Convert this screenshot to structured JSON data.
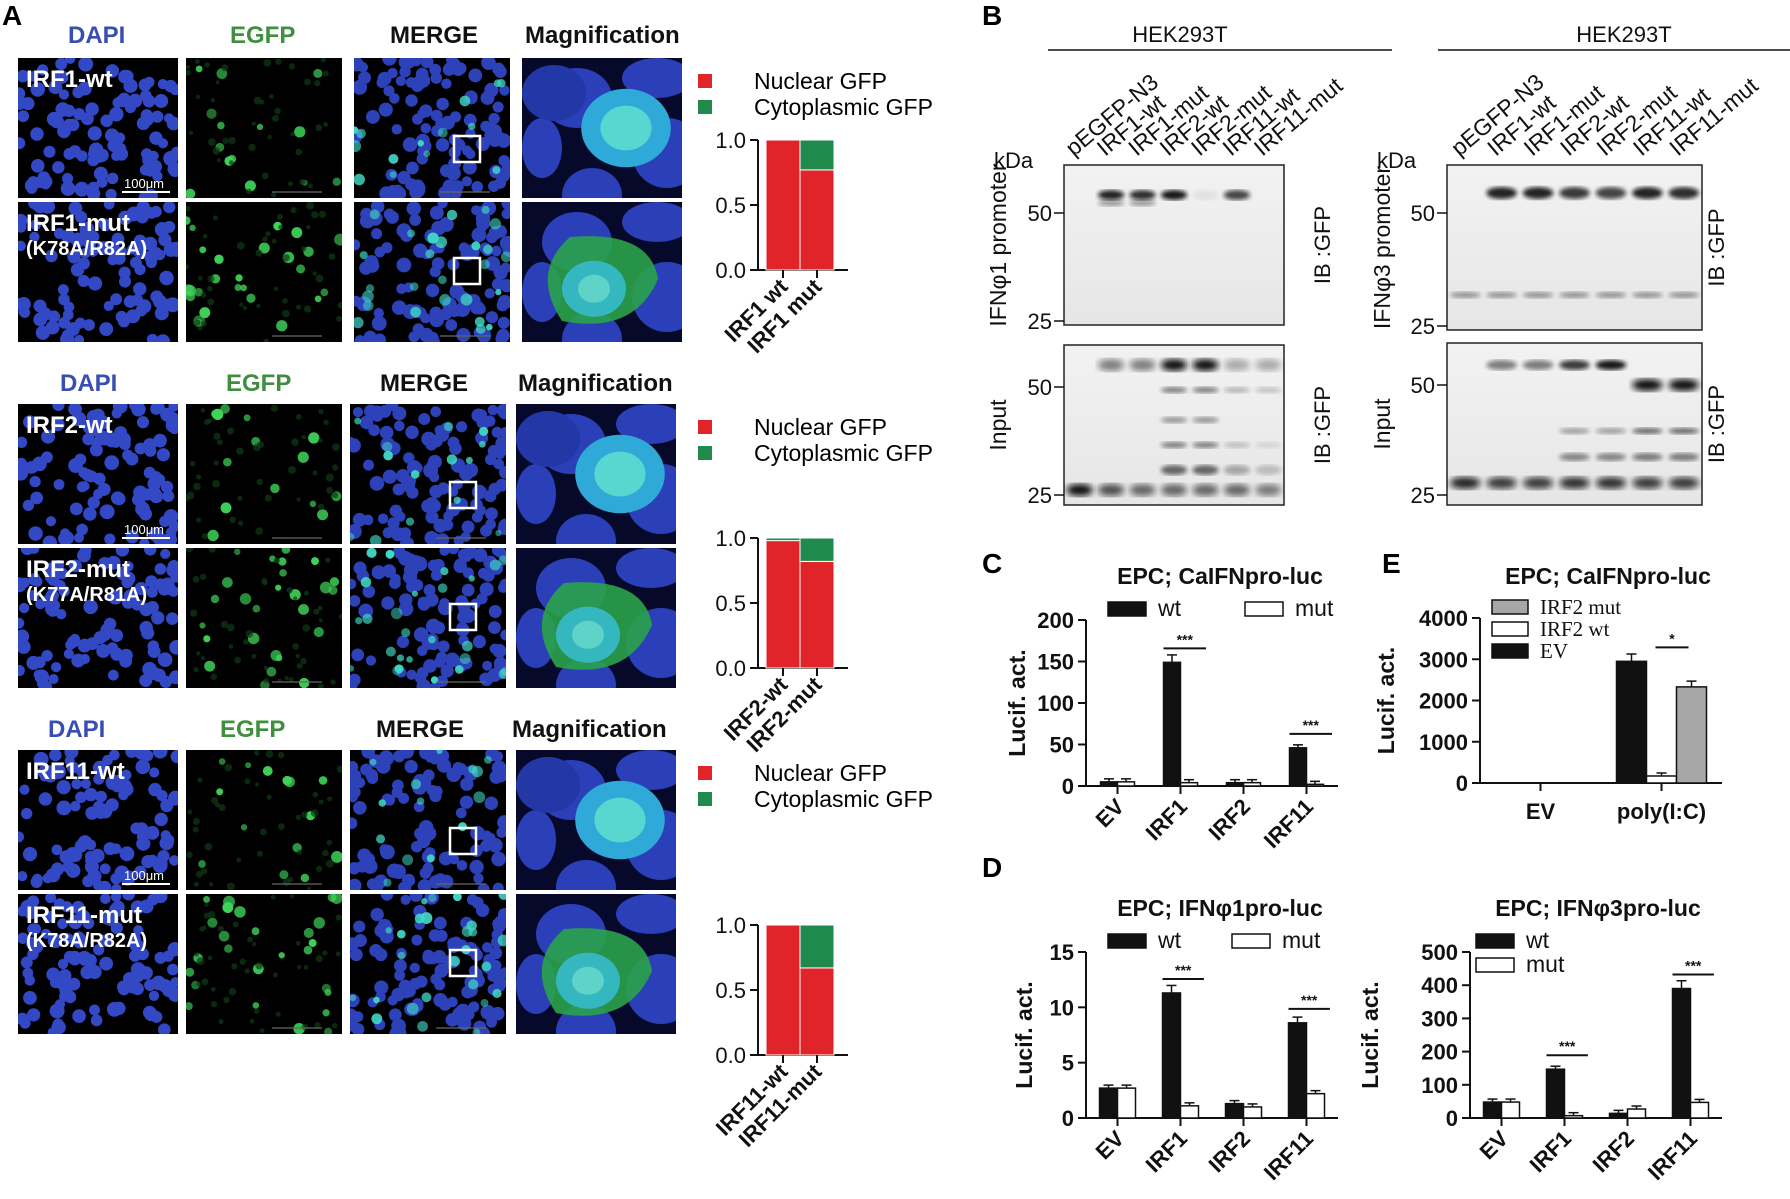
{
  "panel_letters": {
    "A": "A",
    "B": "B",
    "C": "C",
    "D": "D",
    "E": "E"
  },
  "panelA": {
    "headers": {
      "dapi": "DAPI",
      "egfp": "EGFP",
      "merge": "MERGE",
      "mag": "Magnification"
    },
    "scale_bar": "100μm",
    "legend": {
      "nuclear": "Nuclear GFP",
      "cyto": "Cytoplasmic GFP"
    },
    "colors": {
      "dapi": "#3a4db3",
      "egfp": "#3f8f3f",
      "nuclear": "#e0242a",
      "cyto": "#1f8a4c"
    },
    "groups": [
      {
        "row1": "IRF1-wt",
        "row2a": "IRF1-mut",
        "row2b": "(K78A/R82A)",
        "xlabels": [
          "IRF1 wt",
          "IRF1 mut"
        ]
      },
      {
        "row1": "IRF2-wt",
        "row2a": "IRF2-mut",
        "row2b": "(K77A/R81A)",
        "xlabels": [
          "IRF2-wt",
          "IRF2-mut"
        ]
      },
      {
        "row1": "IRF11-wt",
        "row2a": "IRF11-mut",
        "row2b": "(K78A/R82A)",
        "xlabels": [
          "IRF11-wt",
          "IRF11-mut"
        ]
      }
    ],
    "yticks": [
      "1.0",
      "0.5",
      "0.0"
    ]
  },
  "panelB": {
    "cell": "HEK293T",
    "lanes": [
      "pEGFP-N3",
      "IRF1-wt",
      "IRF1-mut",
      "IRF2-wt",
      "IRF2-mut",
      "IRF11-wt",
      "IRF11-mut"
    ],
    "kda": "kDa",
    "left": {
      "top_side": "IFNφ1 promoter",
      "bottom_side": "Input",
      "marks_top": [
        "50",
        "25"
      ],
      "marks_bot": [
        "50",
        "25"
      ]
    },
    "right": {
      "top_side": "IFNφ3 promoter",
      "bottom_side": "Input",
      "marks_top": [
        "50",
        "25"
      ],
      "marks_bot": [
        "50",
        "25"
      ]
    },
    "ib": "IB :GFP"
  },
  "chart_data": [
    {
      "id": "A-IRF1",
      "type": "bar",
      "stacked": true,
      "categories": [
        "IRF1 wt",
        "IRF1 mut"
      ],
      "series": [
        {
          "name": "Nuclear GFP",
          "values": [
            1.0,
            0.77
          ]
        },
        {
          "name": "Cytoplasmic GFP",
          "values": [
            0.0,
            0.23
          ]
        }
      ],
      "ylim": [
        0,
        1.0
      ]
    },
    {
      "id": "A-IRF2",
      "type": "bar",
      "stacked": true,
      "categories": [
        "IRF2-wt",
        "IRF2-mut"
      ],
      "series": [
        {
          "name": "Nuclear GFP",
          "values": [
            0.98,
            0.82
          ]
        },
        {
          "name": "Cytoplasmic GFP",
          "values": [
            0.02,
            0.18
          ]
        }
      ],
      "ylim": [
        0,
        1.0
      ]
    },
    {
      "id": "A-IRF11",
      "type": "bar",
      "stacked": true,
      "categories": [
        "IRF11-wt",
        "IRF11-mut"
      ],
      "series": [
        {
          "name": "Nuclear GFP",
          "values": [
            1.0,
            0.67
          ]
        },
        {
          "name": "Cytoplasmic GFP",
          "values": [
            0.0,
            0.33
          ]
        }
      ],
      "ylim": [
        0,
        1.0
      ]
    },
    {
      "id": "C",
      "type": "bar",
      "title": "EPC; CaIFNpro-luc",
      "ylabel": "Lucif. act.",
      "categories": [
        "EV",
        "IRF1",
        "IRF2",
        "IRF11"
      ],
      "series": [
        {
          "name": "wt",
          "values": [
            5,
            149,
            4,
            46
          ]
        },
        {
          "name": "mut",
          "values": [
            5,
            4,
            4,
            2
          ]
        }
      ],
      "ylim": [
        0,
        200
      ],
      "yticks": [
        "0",
        "50",
        "100",
        "150",
        "200"
      ],
      "sig": [
        {
          "cat": "IRF1",
          "text": "***"
        },
        {
          "cat": "IRF11",
          "text": "***"
        }
      ]
    },
    {
      "id": "E",
      "type": "bar",
      "title": "EPC; CaIFNpro-luc",
      "ylabel": "Lucif. act.",
      "categories": [
        "EV",
        "poly(I:C)"
      ],
      "series": [
        {
          "name": "EV",
          "values": [
            0,
            2950
          ]
        },
        {
          "name": "IRF2 wt",
          "values": [
            0,
            170
          ]
        },
        {
          "name": "IRF2 mut",
          "values": [
            0,
            2330
          ]
        }
      ],
      "legend_order": [
        "IRF2 mut",
        "IRF2 wt",
        "EV"
      ],
      "ylim": [
        0,
        4000
      ],
      "yticks": [
        "0",
        "1000",
        "2000",
        "3000",
        "4000"
      ],
      "sig": [
        {
          "cat": "poly(I:C)",
          "text": "*"
        }
      ]
    },
    {
      "id": "D1",
      "type": "bar",
      "title": "EPC; IFNφ1pro-luc",
      "ylabel": "Lucif. act.",
      "categories": [
        "EV",
        "IRF1",
        "IRF2",
        "IRF11"
      ],
      "series": [
        {
          "name": "wt",
          "values": [
            2.7,
            11.3,
            1.3,
            8.6
          ]
        },
        {
          "name": "mut",
          "values": [
            2.7,
            1.1,
            1.0,
            2.2
          ]
        }
      ],
      "ylim": [
        0,
        15
      ],
      "yticks": [
        "0",
        "5",
        "10",
        "15"
      ],
      "sig": [
        {
          "cat": "IRF1",
          "text": "***"
        },
        {
          "cat": "IRF11",
          "text": "***"
        }
      ]
    },
    {
      "id": "D2",
      "type": "bar",
      "title": "EPC; IFNφ3pro-luc",
      "ylabel": "Lucif. act.",
      "categories": [
        "EV",
        "IRF1",
        "IRF2",
        "IRF11"
      ],
      "series": [
        {
          "name": "wt",
          "values": [
            48,
            147,
            14,
            390
          ]
        },
        {
          "name": "mut",
          "values": [
            48,
            7,
            27,
            47
          ]
        }
      ],
      "ylim": [
        0,
        500
      ],
      "yticks": [
        "0",
        "100",
        "200",
        "300",
        "400",
        "500"
      ],
      "sig": [
        {
          "cat": "IRF1",
          "text": "***"
        },
        {
          "cat": "IRF11",
          "text": "***"
        }
      ]
    }
  ]
}
